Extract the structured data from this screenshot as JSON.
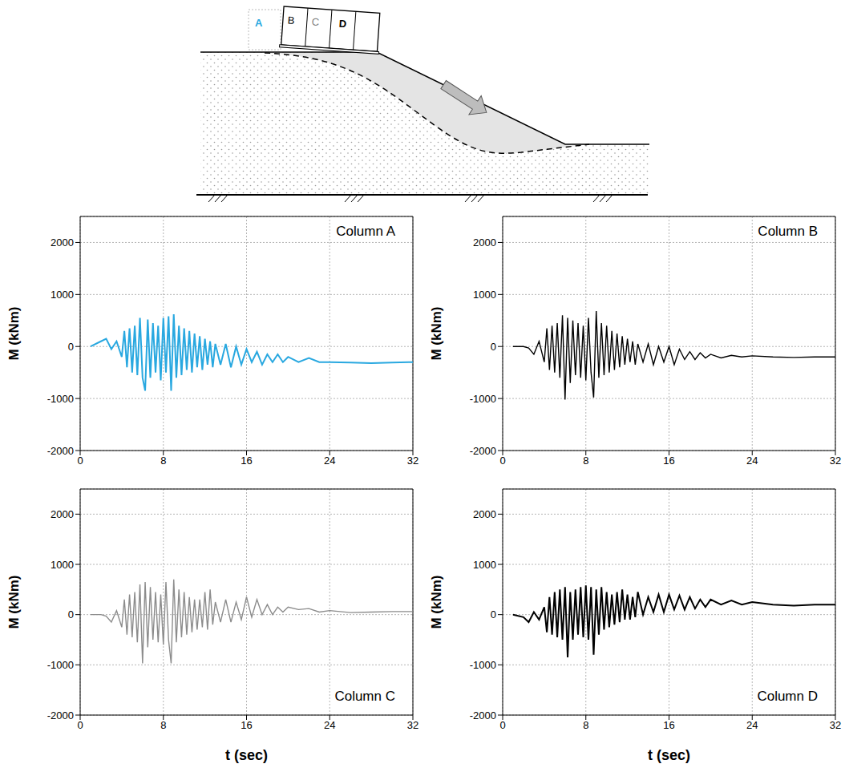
{
  "diagram": {
    "columns": [
      {
        "label": "A",
        "color": "#29a8e0"
      },
      {
        "label": "B",
        "color": "#000000"
      },
      {
        "label": "C",
        "color": "#7f7f7f"
      },
      {
        "label": "D",
        "color": "#000000"
      }
    ]
  },
  "chart_data": [
    {
      "type": "line",
      "title": "Column A",
      "y_label": "M (kNm)",
      "color": "#29a8e0",
      "grid": true,
      "xlim": [
        0,
        32
      ],
      "xticks": [
        0,
        8,
        16,
        24,
        32
      ],
      "ylim": [
        -2000,
        2500
      ],
      "yticks": [
        -2000,
        -1000,
        0,
        1000,
        2000
      ],
      "x": [
        1,
        2,
        2.5,
        3,
        3.5,
        4,
        4.25,
        4.5,
        4.75,
        5,
        5.25,
        5.5,
        5.75,
        6,
        6.25,
        6.5,
        6.75,
        7,
        7.25,
        7.5,
        7.75,
        8,
        8.25,
        8.5,
        8.75,
        9,
        9.25,
        9.5,
        9.75,
        10,
        10.25,
        10.5,
        10.75,
        11,
        11.25,
        11.5,
        11.75,
        12,
        12.25,
        12.5,
        12.75,
        13,
        13.5,
        14,
        14.5,
        15,
        15.5,
        16,
        16.5,
        17,
        17.5,
        18,
        18.5,
        19,
        19.5,
        20,
        21,
        22,
        23,
        24,
        26,
        28,
        30,
        32
      ],
      "values": [
        0,
        100,
        150,
        -50,
        100,
        -200,
        300,
        -400,
        350,
        -500,
        400,
        -550,
        550,
        -600,
        -850,
        520,
        -600,
        450,
        -500,
        400,
        -650,
        550,
        -500,
        580,
        -850,
        620,
        -600,
        400,
        -550,
        350,
        -450,
        300,
        -500,
        250,
        -400,
        200,
        -450,
        150,
        -350,
        100,
        -400,
        50,
        -350,
        50,
        -400,
        0,
        -350,
        -50,
        -300,
        -100,
        -350,
        -150,
        -300,
        -150,
        -300,
        -200,
        -300,
        -220,
        -300,
        -300,
        -310,
        -320,
        -310,
        -300
      ]
    },
    {
      "type": "line",
      "title": "Column B",
      "y_label": "M (kNm)",
      "color": "#000000",
      "grid": true,
      "xlim": [
        0,
        32
      ],
      "xticks": [
        0,
        8,
        16,
        24,
        32
      ],
      "ylim": [
        -2000,
        2500
      ],
      "yticks": [
        -2000,
        -1000,
        0,
        1000,
        2000
      ],
      "x": [
        1,
        2,
        2.5,
        3,
        3.5,
        4,
        4.25,
        4.5,
        4.75,
        5,
        5.25,
        5.5,
        5.75,
        6,
        6.25,
        6.5,
        6.75,
        7,
        7.25,
        7.5,
        7.75,
        8,
        8.25,
        8.5,
        8.75,
        9,
        9.25,
        9.5,
        9.75,
        10,
        10.25,
        10.5,
        10.75,
        11,
        11.25,
        11.5,
        11.75,
        12,
        12.25,
        12.5,
        12.75,
        13,
        13.5,
        14,
        14.5,
        15,
        15.5,
        16,
        16.5,
        17,
        17.5,
        18,
        18.5,
        19,
        19.5,
        20,
        21,
        22,
        23,
        24,
        26,
        28,
        30,
        32
      ],
      "values": [
        0,
        0,
        -30,
        -150,
        100,
        -300,
        350,
        -450,
        400,
        -500,
        450,
        -600,
        600,
        -1020,
        550,
        -700,
        500,
        -550,
        450,
        -600,
        400,
        -650,
        550,
        -500,
        -980,
        680,
        -600,
        450,
        -550,
        400,
        -500,
        300,
        -450,
        250,
        -400,
        200,
        -350,
        150,
        -300,
        100,
        -350,
        50,
        -300,
        50,
        -350,
        0,
        -300,
        0,
        -350,
        -50,
        -250,
        -100,
        -250,
        -120,
        -220,
        -150,
        -220,
        -170,
        -200,
        -180,
        -200,
        -210,
        -200,
        -200
      ]
    },
    {
      "type": "line",
      "title": "Column C",
      "y_label": "M (kNm)",
      "x_label": "t (sec)",
      "color": "#8c8c8c",
      "grid": true,
      "xlim": [
        0,
        32
      ],
      "xticks": [
        0,
        8,
        16,
        24,
        32
      ],
      "ylim": [
        -2000,
        2500
      ],
      "yticks": [
        -2000,
        -1000,
        0,
        1000,
        2000
      ],
      "x": [
        1,
        2,
        2.5,
        3,
        3.5,
        4,
        4.25,
        4.5,
        4.75,
        5,
        5.25,
        5.5,
        5.75,
        6,
        6.25,
        6.5,
        6.75,
        7,
        7.25,
        7.5,
        7.75,
        8,
        8.25,
        8.5,
        8.75,
        9,
        9.25,
        9.5,
        9.75,
        10,
        10.25,
        10.5,
        10.75,
        11,
        11.25,
        11.5,
        11.75,
        12,
        12.25,
        12.5,
        12.75,
        13,
        13.5,
        14,
        14.5,
        15,
        15.5,
        16,
        16.5,
        17,
        17.5,
        18,
        18.5,
        19,
        19.5,
        20,
        21,
        22,
        23,
        24,
        26,
        28,
        30,
        32
      ],
      "values": [
        0,
        0,
        -30,
        -150,
        80,
        -250,
        300,
        -400,
        400,
        -450,
        450,
        -550,
        600,
        -970,
        650,
        -650,
        550,
        -500,
        450,
        -550,
        400,
        -600,
        650,
        -500,
        -970,
        700,
        -550,
        500,
        -450,
        450,
        -400,
        350,
        -350,
        300,
        -300,
        300,
        -250,
        450,
        -300,
        500,
        -200,
        250,
        -150,
        300,
        -150,
        250,
        -100,
        350,
        -50,
        300,
        0,
        200,
        0,
        150,
        50,
        150,
        100,
        120,
        50,
        80,
        40,
        50,
        60,
        60
      ]
    },
    {
      "type": "line",
      "title": "Column D",
      "y_label": "M (kNm)",
      "x_label": "t (sec)",
      "color": "#000000",
      "grid": true,
      "xlim": [
        0,
        32
      ],
      "xticks": [
        0,
        8,
        16,
        24,
        32
      ],
      "ylim": [
        -2000,
        2500
      ],
      "yticks": [
        -2000,
        -1000,
        0,
        1000,
        2000
      ],
      "x": [
        1,
        2,
        2.5,
        3,
        3.5,
        4,
        4.25,
        4.5,
        4.75,
        5,
        5.25,
        5.5,
        5.75,
        6,
        6.25,
        6.5,
        6.75,
        7,
        7.25,
        7.5,
        7.75,
        8,
        8.25,
        8.5,
        8.75,
        9,
        9.25,
        9.5,
        9.75,
        10,
        10.25,
        10.5,
        10.75,
        11,
        11.25,
        11.5,
        11.75,
        12,
        12.25,
        12.5,
        12.75,
        13,
        13.5,
        14,
        14.5,
        15,
        15.5,
        16,
        16.5,
        17,
        17.5,
        18,
        18.5,
        19,
        19.5,
        20,
        21,
        22,
        23,
        24,
        26,
        28,
        30,
        32
      ],
      "values": [
        0,
        -50,
        -150,
        50,
        -100,
        150,
        -350,
        350,
        -400,
        450,
        -450,
        500,
        -500,
        550,
        -850,
        450,
        -500,
        500,
        -400,
        550,
        -450,
        580,
        -500,
        550,
        -800,
        500,
        -400,
        550,
        -300,
        450,
        -250,
        400,
        -200,
        450,
        -150,
        500,
        -100,
        400,
        -100,
        350,
        -50,
        450,
        0,
        350,
        50,
        400,
        50,
        400,
        100,
        380,
        100,
        350,
        120,
        300,
        150,
        300,
        200,
        280,
        200,
        250,
        200,
        180,
        200,
        200
      ]
    }
  ]
}
